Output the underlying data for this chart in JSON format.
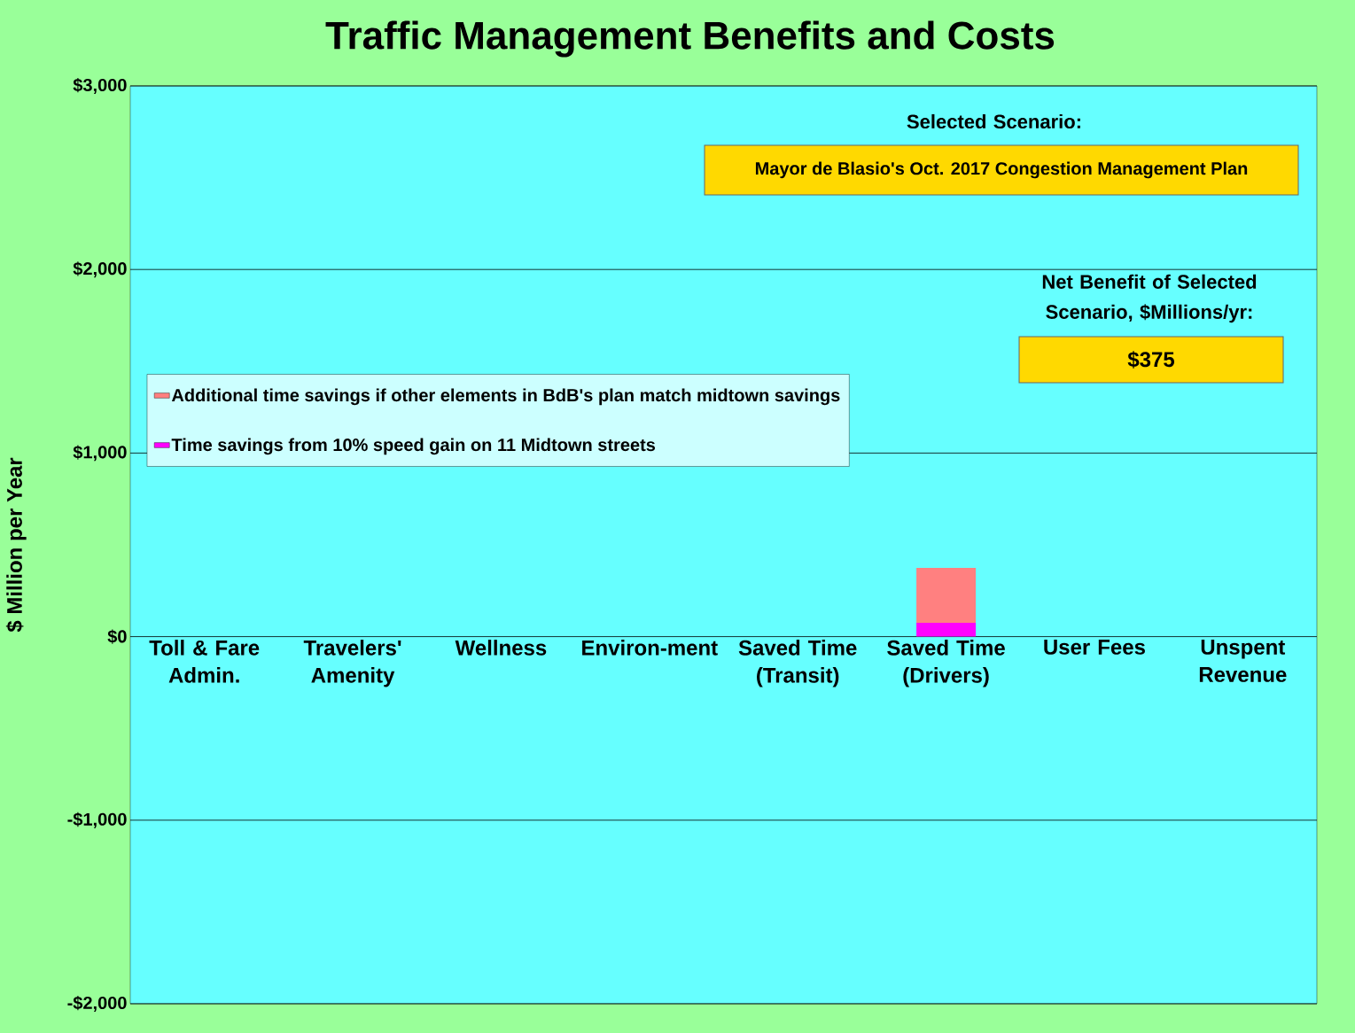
{
  "chart_data": {
    "type": "bar",
    "title": "Traffic Management Benefits and Costs",
    "ylabel": "$ Million per Year",
    "categories": [
      "Toll & Fare Admin.",
      "Travelers' Amenity",
      "Wellness",
      "Environ-ment",
      "Saved Time (Transit)",
      "Saved Time (Drivers)",
      "User Fees",
      "Unspent Revenue"
    ],
    "series": [
      {
        "name": "Time savings from 10% speed gain on 11 Midtown streets",
        "color": "#ff00ff",
        "values": [
          null,
          null,
          null,
          null,
          null,
          75,
          null,
          null
        ]
      },
      {
        "name": "Additional time savings if other elements in BdB's plan match midtown savings",
        "color": "#ff8080",
        "values": [
          null,
          null,
          null,
          null,
          null,
          300,
          null,
          null
        ]
      }
    ],
    "stacked": true,
    "ylim": [
      -2000,
      3000
    ],
    "yticks": [
      {
        "value": -2000,
        "label": "-$2,000"
      },
      {
        "value": -1000,
        "label": "-$1,000"
      },
      {
        "value": 0,
        "label": "$0"
      },
      {
        "value": 1000,
        "label": "$1,000"
      },
      {
        "value": 2000,
        "label": "$2,000"
      },
      {
        "value": 3000,
        "label": "$3,000"
      }
    ],
    "grid": "y",
    "legend": "left",
    "annotations": [
      "Selected Scenario:",
      "Mayor de Blasio's Oct. 2017 Congestion Management Plan",
      "Net Benefit of Selected Scenario, $Millions/yr:",
      "$375"
    ]
  }
}
